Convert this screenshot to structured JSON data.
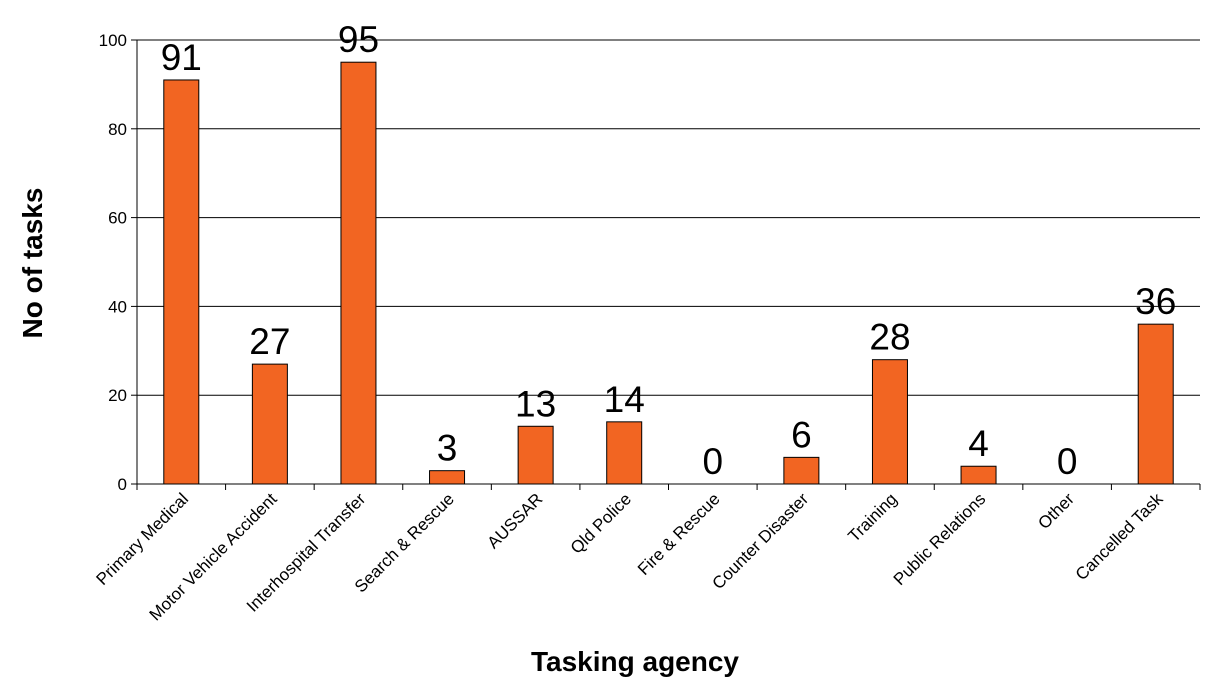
{
  "chart_data": {
    "type": "bar",
    "title": "",
    "xlabel": "Tasking agency",
    "ylabel": "No of tasks",
    "categories": [
      "Primary Medical",
      "Motor Vehicle Accident",
      "Interhospital Transfer",
      "Search & Rescue",
      "AUSSAR",
      "Qld Police",
      "Fire & Rescue",
      "Counter Disaster",
      "Training",
      "Public Relations",
      "Other",
      "Cancelled Task"
    ],
    "values": [
      91,
      27,
      95,
      3,
      13,
      14,
      0,
      6,
      28,
      4,
      0,
      36
    ],
    "data_labels": [
      "91",
      "27",
      "95",
      "3",
      "13",
      "14",
      "0",
      "6",
      "28",
      "4",
      "0",
      "36"
    ],
    "ylim": [
      0,
      100
    ],
    "yticks": [
      0,
      20,
      40,
      60,
      80,
      100
    ],
    "ytick_labels": [
      "0",
      "20",
      "40",
      "60",
      "80",
      "100"
    ],
    "grid": true,
    "legend": false,
    "bar_color": "#F26522"
  }
}
